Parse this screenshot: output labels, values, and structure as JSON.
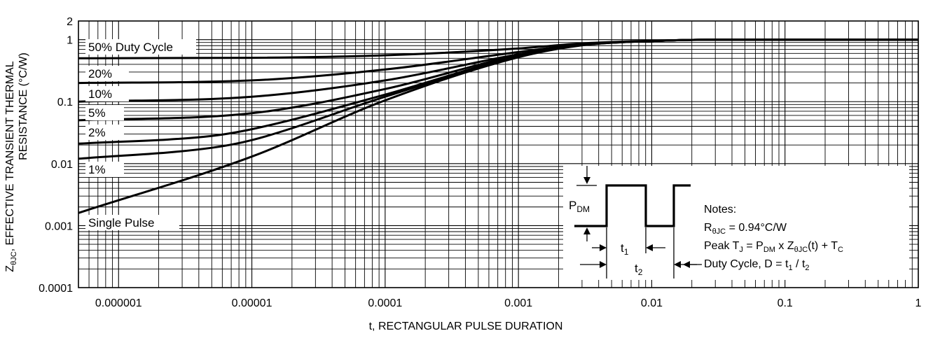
{
  "chart_data": {
    "type": "line",
    "x_scale": "log",
    "y_scale": "log",
    "xlim": [
      5e-07,
      1
    ],
    "ylim": [
      0.0001,
      2
    ],
    "grid": true,
    "xlabel": "t, RECTANGULAR PULSE DURATION",
    "ylabel": {
      "line1_prefix": "Z",
      "line1_sub": "θJC",
      "line1_rest": ", EFFECTIVE TRANSIENT THERMAL",
      "line2": "RESISTANCE (°C/W)"
    },
    "x_ticks": [
      {
        "value": 1e-06,
        "label": "0.000001"
      },
      {
        "value": 1e-05,
        "label": "0.00001"
      },
      {
        "value": 0.0001,
        "label": "0.0001"
      },
      {
        "value": 0.001,
        "label": "0.001"
      },
      {
        "value": 0.01,
        "label": "0.01"
      },
      {
        "value": 0.1,
        "label": "0.1"
      },
      {
        "value": 1,
        "label": "1"
      }
    ],
    "y_ticks": [
      {
        "value": 2,
        "label": "2"
      },
      {
        "value": 1,
        "label": "1"
      },
      {
        "value": 0.1,
        "label": "0.1"
      },
      {
        "value": 0.01,
        "label": "0.01"
      },
      {
        "value": 0.001,
        "label": "0.001"
      },
      {
        "value": 0.0001,
        "label": "0.0001"
      }
    ],
    "series": [
      {
        "name": "50% Duty Cycle",
        "x": [
          5e-07,
          1e-05,
          0.0001,
          0.001,
          0.003,
          0.01,
          0.03,
          1
        ],
        "y": [
          0.5,
          0.51,
          0.56,
          0.72,
          0.87,
          0.96,
          1.0,
          1.0
        ]
      },
      {
        "name": "20%",
        "x": [
          5e-07,
          1e-05,
          0.0001,
          0.001,
          0.003,
          0.01,
          0.03,
          1
        ],
        "y": [
          0.2,
          0.22,
          0.33,
          0.63,
          0.84,
          0.95,
          1.0,
          1.0
        ]
      },
      {
        "name": "10%",
        "x": [
          5e-07,
          1e-05,
          0.0001,
          0.001,
          0.003,
          0.01,
          0.03,
          1
        ],
        "y": [
          0.1,
          0.12,
          0.22,
          0.58,
          0.83,
          0.95,
          1.0,
          1.0
        ]
      },
      {
        "name": "5%",
        "x": [
          5e-07,
          1e-05,
          0.0001,
          0.001,
          0.003,
          0.01,
          0.03,
          1
        ],
        "y": [
          0.05,
          0.065,
          0.16,
          0.56,
          0.82,
          0.95,
          1.0,
          1.0
        ]
      },
      {
        "name": "2%",
        "x": [
          5e-07,
          5e-06,
          1e-05,
          0.0001,
          0.001,
          0.003,
          0.01,
          0.03,
          1
        ],
        "y": [
          0.021,
          0.028,
          0.036,
          0.13,
          0.54,
          0.82,
          0.95,
          1.0,
          1.0
        ]
      },
      {
        "name": "1%",
        "x": [
          5e-07,
          5e-06,
          1e-05,
          0.0001,
          0.001,
          0.003,
          0.01,
          0.03,
          1
        ],
        "y": [
          0.012,
          0.018,
          0.024,
          0.12,
          0.53,
          0.82,
          0.95,
          1.0,
          1.0
        ]
      },
      {
        "name": "Single Pulse",
        "x": [
          5e-07,
          1e-05,
          0.0001,
          0.001,
          0.003,
          0.01,
          0.03,
          1
        ],
        "y": [
          0.0016,
          0.013,
          0.105,
          0.52,
          0.81,
          0.95,
          1.0,
          1.0
        ]
      }
    ],
    "series_labels": [
      "50% Duty Cycle",
      "20%",
      "10%",
      "5%",
      "2%",
      "1%",
      "Single Pulse"
    ],
    "inset": {
      "pdm_base": "P",
      "pdm_sub": "DM",
      "t1_base": "t",
      "t1_sub": "1",
      "t2_base": "t",
      "t2_sub": "2"
    },
    "notes": {
      "title": "Notes:",
      "line1_a": "R",
      "line1_sub": "θJC",
      "line1_b": " = 0.94°C/W",
      "line2_a": "Peak T",
      "line2_sub1": "J",
      "line2_b": " = P",
      "line2_sub2": "DM",
      "line2_c": " x Z",
      "line2_sub3": "θJC",
      "line2_d": "(t) + T",
      "line2_sub4": "C",
      "line3_a": "Duty Cycle, D = t",
      "line3_sub1": "1",
      "line3_b": " / t",
      "line3_sub2": "2"
    }
  }
}
